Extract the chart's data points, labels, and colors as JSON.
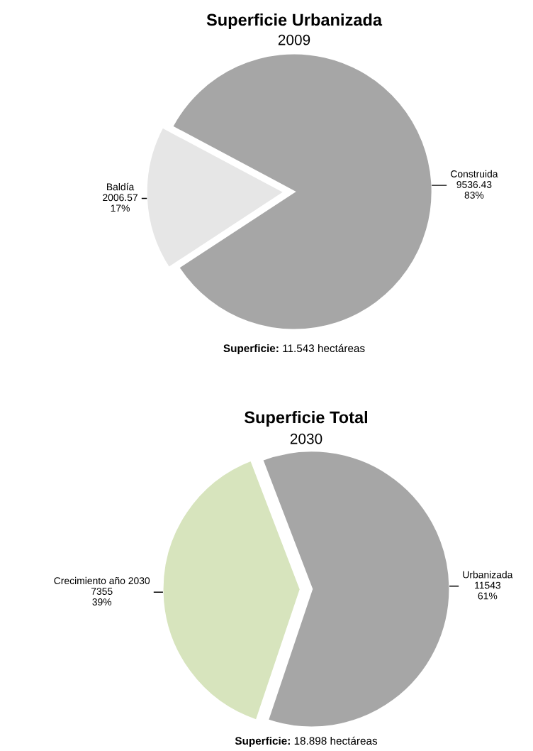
{
  "chart_data": [
    {
      "type": "pie",
      "title": "Superficie Urbanizada",
      "subtitle": "2009",
      "categories": [
        "Baldía",
        "Construida"
      ],
      "values": [
        17,
        83
      ],
      "colors": [
        "#e6e6e6",
        "#a6a6a6"
      ],
      "value_labels": [
        "2006.57\n17%",
        "9536.43\n83%"
      ],
      "annotations": [
        "Superficie: 11.543 hectáreas"
      ],
      "legend": false
    },
    {
      "type": "pie",
      "title": "Superficie Total",
      "subtitle": "2030",
      "categories": [
        "Crecimiento año 2030",
        "Urbanizada"
      ],
      "values": [
        39,
        61
      ],
      "colors": [
        "#d7e4bd",
        "#a6a6a6"
      ],
      "value_labels": [
        "7355\n39%",
        "11543\n61%"
      ],
      "annotations": [
        "Superficie: 18.898 hectáreas"
      ],
      "legend": false
    }
  ]
}
